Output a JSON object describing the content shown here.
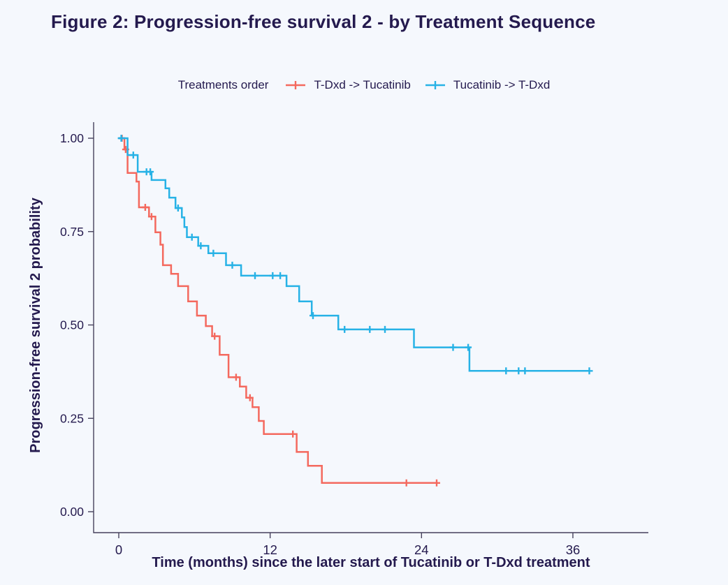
{
  "title": "Figure 2: Progression-free survival 2 - by Treatment Sequence",
  "legend": {
    "title": "Treatments order",
    "items": [
      {
        "label": "T-Dxd -> Tucatinib",
        "color": "#f4695e"
      },
      {
        "label": "Tucatinib -> T-Dxd",
        "color": "#27b2e6"
      }
    ]
  },
  "colors": {
    "background": "#f5f8fd",
    "text": "#241a4e",
    "axis": "#46415c",
    "red_series": "#f4695e",
    "blue_series": "#27b2e6"
  },
  "chart_data": {
    "type": "line",
    "subtype": "kaplan-meier-step",
    "title": "Figure 2: Progression-free survival 2 - by Treatment Sequence",
    "xlabel": "Time (months) since the later start of Tucatinib or T-Dxd treatment",
    "ylabel": "Progression-free survival 2 probability",
    "xlim": [
      0,
      42
    ],
    "ylim": [
      0,
      1
    ],
    "grid": false,
    "legend_position": "top",
    "xticks": [
      0,
      12,
      24,
      36
    ],
    "xtick_labels": [
      "0",
      "12",
      "24",
      "36"
    ],
    "yticks": [
      0,
      0.25,
      0.5,
      0.75,
      1
    ],
    "ytick_labels": [
      "0.00",
      "0.25",
      "0.50",
      "0.75",
      "1.00"
    ],
    "series": [
      {
        "name": "T-Dxd -> Tucatinib",
        "color": "#f4695e",
        "steps": [
          [
            0,
            1.0
          ],
          [
            0.45,
            0.97
          ],
          [
            0.7,
            0.907
          ],
          [
            1.4,
            0.884
          ],
          [
            1.6,
            0.815
          ],
          [
            2.4,
            0.79
          ],
          [
            2.9,
            0.748
          ],
          [
            3.3,
            0.715
          ],
          [
            3.5,
            0.66
          ],
          [
            4.15,
            0.637
          ],
          [
            4.7,
            0.604
          ],
          [
            5.5,
            0.563
          ],
          [
            6.2,
            0.525
          ],
          [
            6.9,
            0.497
          ],
          [
            7.4,
            0.47
          ],
          [
            8.0,
            0.42
          ],
          [
            8.7,
            0.36
          ],
          [
            9.6,
            0.335
          ],
          [
            10.1,
            0.305
          ],
          [
            10.6,
            0.28
          ],
          [
            11.1,
            0.243
          ],
          [
            11.5,
            0.208
          ],
          [
            14.1,
            0.16
          ],
          [
            15.0,
            0.123
          ],
          [
            16.1,
            0.077
          ]
        ],
        "censor_times": [
          0.25,
          0.55,
          2.1,
          2.6,
          7.6,
          9.3,
          10.4,
          13.8,
          22.8,
          25.2
        ],
        "end_time": 25.2
      },
      {
        "name": "Tucatinib -> T-Dxd",
        "color": "#27b2e6",
        "steps": [
          [
            0,
            1.0
          ],
          [
            0.7,
            0.955
          ],
          [
            1.5,
            0.91
          ],
          [
            2.6,
            0.888
          ],
          [
            3.7,
            0.866
          ],
          [
            4.0,
            0.841
          ],
          [
            4.5,
            0.813
          ],
          [
            5.0,
            0.788
          ],
          [
            5.2,
            0.762
          ],
          [
            5.4,
            0.735
          ],
          [
            6.3,
            0.712
          ],
          [
            7.1,
            0.692
          ],
          [
            8.5,
            0.66
          ],
          [
            9.7,
            0.632
          ],
          [
            13.3,
            0.604
          ],
          [
            14.3,
            0.563
          ],
          [
            15.3,
            0.525
          ],
          [
            17.4,
            0.488
          ],
          [
            23.4,
            0.44
          ],
          [
            27.8,
            0.377
          ]
        ],
        "censor_times": [
          0.2,
          1.15,
          2.2,
          2.5,
          4.7,
          5.8,
          6.5,
          7.5,
          9.0,
          10.8,
          12.2,
          12.8,
          15.4,
          17.9,
          19.9,
          21.1,
          26.5,
          27.7,
          30.7,
          31.7,
          32.2,
          37.3
        ],
        "end_time": 37.3
      }
    ]
  }
}
